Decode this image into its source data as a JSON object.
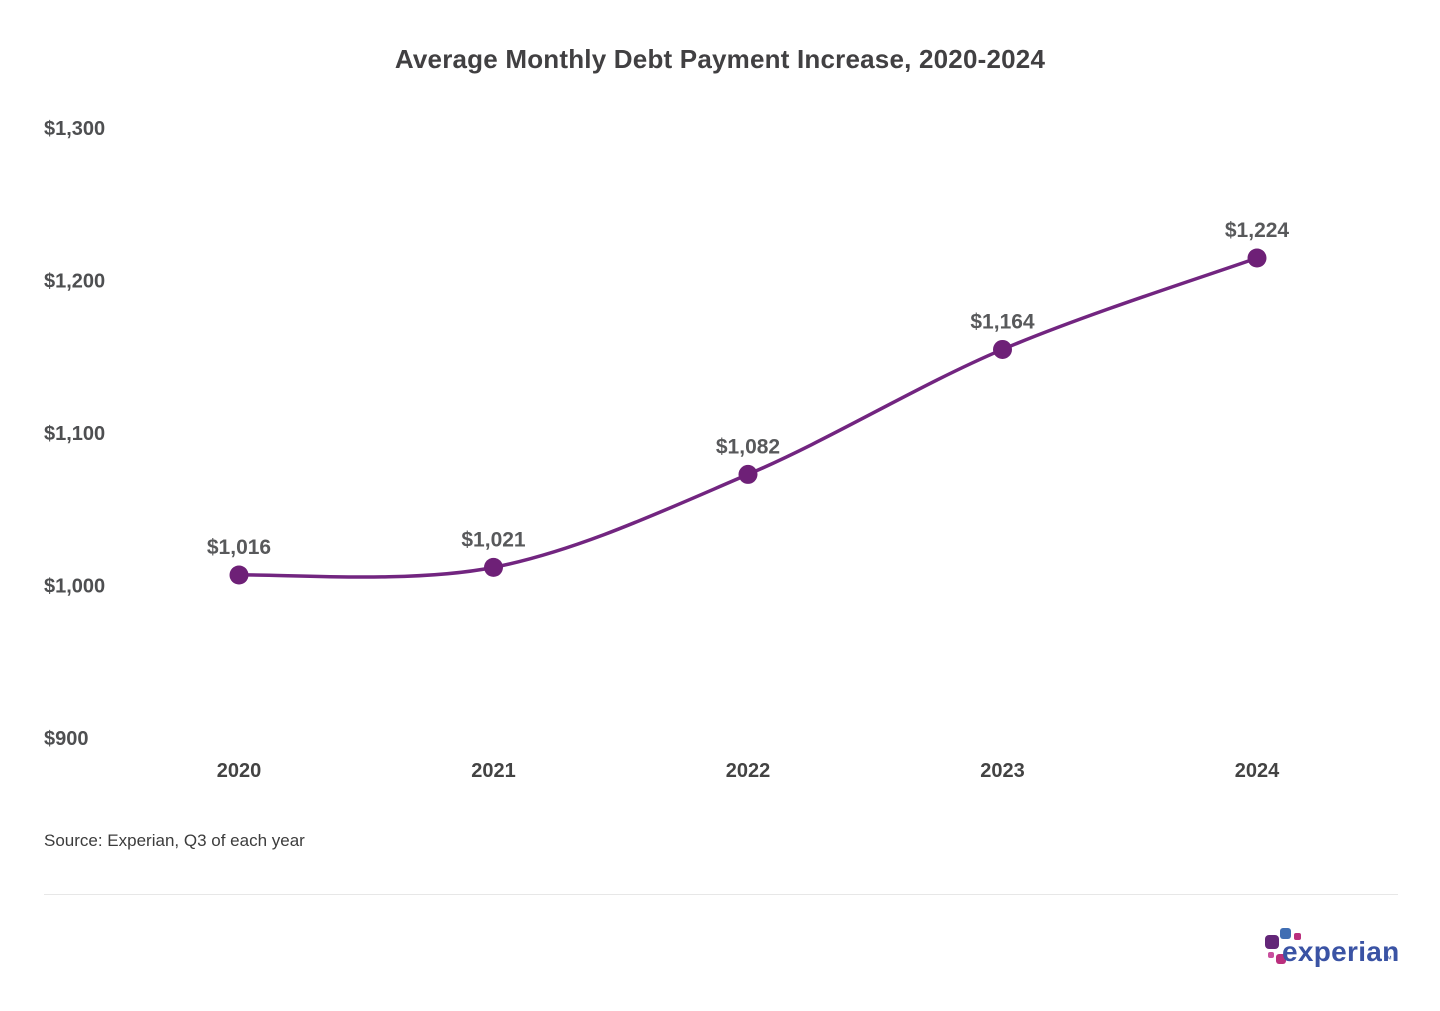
{
  "chart_data": {
    "type": "line",
    "title": "Average Monthly Debt Payment Increase, 2020-2024",
    "categories": [
      "2020",
      "2021",
      "2022",
      "2023",
      "2024"
    ],
    "values": [
      1016,
      1021,
      1082,
      1164,
      1224
    ],
    "point_labels": [
      "$1,016",
      "$1,021",
      "$1,082",
      "$1,164",
      "$1,224"
    ],
    "y_ticks": [
      1300,
      1200,
      1100,
      1000,
      900
    ],
    "y_tick_labels": [
      "$1,300",
      "$1,200",
      "$1,100",
      "$1,000",
      "$900"
    ],
    "ylim": [
      900,
      1300
    ],
    "xlabel": "",
    "ylabel": "",
    "grid": false,
    "legend": "none",
    "line_color": "#722580",
    "point_color": "#6E2077",
    "point_label_color": "#58595B",
    "axis_label_color": "#4E4F51",
    "x_label_color": "#434343"
  },
  "footer": {
    "source": "Source: Experian, Q3 of each year",
    "logo": {
      "text": "experian",
      "trademark": "™",
      "wordmark_color": "#3A53A4",
      "block_colors": {
        "purple": "#632678",
        "blue": "#406EB3",
        "magenta": "#BA2F7D",
        "pink": "#C94F9E"
      }
    }
  }
}
